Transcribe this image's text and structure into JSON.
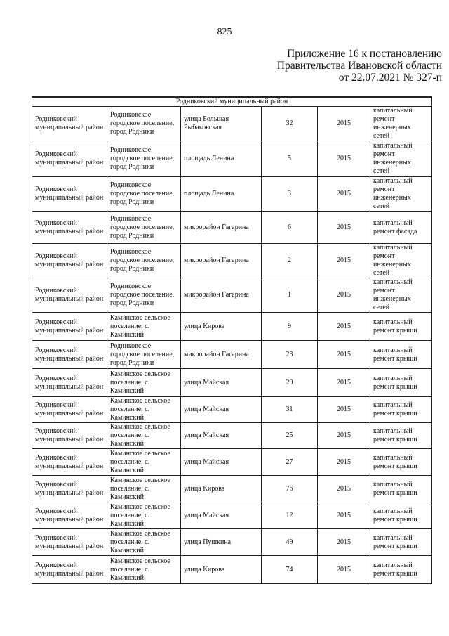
{
  "page_number": "825",
  "appendix": [
    "Приложение 16 к постановлению",
    "Правительства Ивановской области",
    "от 22.07.2021 № 327-п"
  ],
  "section_title": "Родниковский муниципальный район",
  "rows": [
    {
      "district": "Родниковский муниципальный район",
      "settlement": "Родниковское городское поселение, город Родники",
      "street": "улица Большая Рыбаковская",
      "house": "32",
      "year": "2015",
      "work": "капитальный ремонт инженерных сетей"
    },
    {
      "district": "Родниковский муниципальный район",
      "settlement": "Родниковское городское поселение, город Родники",
      "street": "площадь Ленина",
      "house": "5",
      "year": "2015",
      "work": "капитальный ремонт инженерных сетей"
    },
    {
      "district": "Родниковский муниципальный район",
      "settlement": "Родниковское городское поселение, город Родники",
      "street": "площадь Ленина",
      "house": "3",
      "year": "2015",
      "work": "капитальный ремонт инженерных сетей"
    },
    {
      "district": "Родниковский муниципальный район",
      "settlement": "Родниковское городское поселение, город Родники",
      "street": "микрорайон Гагарина",
      "house": "6",
      "year": "2015",
      "work": "капитальный ремонт фасада"
    },
    {
      "district": "Родниковский муниципальный район",
      "settlement": "Родниковское городское поселение, город Родники",
      "street": "микрорайон Гагарина",
      "house": "2",
      "year": "2015",
      "work": "капитальный ремонт инженерных сетей"
    },
    {
      "district": "Родниковский муниципальный район",
      "settlement": "Родниковское городское поселение, город Родники",
      "street": "микрорайон Гагарина",
      "house": "1",
      "year": "2015",
      "work": "капитальный ремонт инженерных сетей"
    },
    {
      "district": "Родниковский муниципальный район",
      "settlement": "Каминское сельское поселение, с. Каминский",
      "street": "улица Кирова",
      "house": "9",
      "year": "2015",
      "work": "капитальный ремонт крыши"
    },
    {
      "district": "Родниковский муниципальный район",
      "settlement": "Родниковское городское поселение, город Родники",
      "street": "микрорайон Гагарина",
      "house": "23",
      "year": "2015",
      "work": "капитальный ремонт крыши"
    },
    {
      "district": "Родниковский муниципальный район",
      "settlement": "Каминское сельское поселение, с. Каминский",
      "street": "улица Майская",
      "house": "29",
      "year": "2015",
      "work": "капитальный ремонт крыши"
    },
    {
      "district": "Родниковский муниципальный район",
      "settlement": "Каминское сельское поселение, с. Каминский",
      "street": "улица Майская",
      "house": "31",
      "year": "2015",
      "work": "капитальный ремонт крыши"
    },
    {
      "district": "Родниковский муниципальный район",
      "settlement": "Каминское сельское поселение, с. Каминский",
      "street": "улица Майская",
      "house": "25",
      "year": "2015",
      "work": "капитальный ремонт крыши"
    },
    {
      "district": "Родниковский муниципальный район",
      "settlement": "Каминское сельское поселение, с. Каминский",
      "street": "улица Майская",
      "house": "27",
      "year": "2015",
      "work": "капитальный ремонт крыши"
    },
    {
      "district": "Родниковский муниципальный район",
      "settlement": "Каминское сельское поселение, с. Каминский",
      "street": "улица Кирова",
      "house": "76",
      "year": "2015",
      "work": "капитальный ремонт крыши"
    },
    {
      "district": "Родниковский муниципальный район",
      "settlement": "Каминское сельское поселение, с. Каминский",
      "street": "улица Майская",
      "house": "12",
      "year": "2015",
      "work": "капитальный ремонт крыши"
    },
    {
      "district": "Родниковский муниципальный район",
      "settlement": "Каминское сельское поселение, с. Каминский",
      "street": "улица Пушкина",
      "house": "49",
      "year": "2015",
      "work": "капитальный ремонт крыши"
    },
    {
      "district": "Родниковский муниципальный район",
      "settlement": "Каминское сельское поселение, с. Каминский",
      "street": "улица Кирова",
      "house": "74",
      "year": "2015",
      "work": "капитальный ремонт крыши"
    }
  ]
}
